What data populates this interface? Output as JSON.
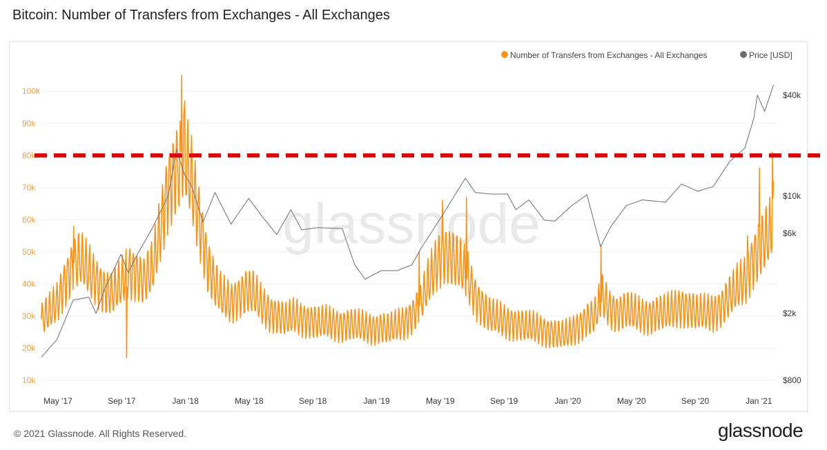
{
  "title": "Bitcoin: Number of Transfers from Exchanges - All Exchanges",
  "footer": {
    "copyright": "© 2021 Glassnode. All Rights Reserved.",
    "logo": "glassnode"
  },
  "colors": {
    "transfers": "#f7931a",
    "price": "#6e6e6e",
    "threshold": "#e00000",
    "watermark": "#e9e9e9"
  },
  "chart_data": {
    "type": "line",
    "title": "Bitcoin: Number of Transfers from Exchanges - All Exchanges",
    "watermark": "glassnode",
    "grid": "horizontal",
    "legend": {
      "position": "top-right",
      "entries": [
        "Number of Transfers from Exchanges - All Exchanges",
        "Price [USD]"
      ]
    },
    "x_ticks": [
      "May '17",
      "Sep '17",
      "Jan '18",
      "May '18",
      "Sep '18",
      "Jan '19",
      "May '19",
      "Sep '19",
      "Jan '20",
      "May '20",
      "Sep '20",
      "Jan '21"
    ],
    "y_left": {
      "ticks": [
        "10k",
        "20k",
        "30k",
        "40k",
        "50k",
        "60k",
        "70k",
        "80k",
        "90k",
        "100k"
      ],
      "range": [
        7000,
        108000
      ]
    },
    "y_right": {
      "scale": "log",
      "ticks": [
        "$800",
        "$2k",
        "$6k",
        "$10k",
        "$40k"
      ],
      "range": [
        700,
        60000
      ]
    },
    "threshold": {
      "value": 80000,
      "style": "dashed"
    },
    "series": [
      {
        "name": "Number of Transfers from Exchanges - All Exchanges",
        "axis": "left",
        "points": [
          [
            "2017-04-01",
            29000
          ],
          [
            "2017-04-15",
            31000
          ],
          [
            "2017-05-01",
            34000
          ],
          [
            "2017-05-15",
            40000
          ],
          [
            "2017-06-01",
            46000
          ],
          [
            "2017-06-15",
            48000
          ],
          [
            "2017-07-01",
            44000
          ],
          [
            "2017-07-15",
            41000
          ],
          [
            "2017-08-01",
            38000
          ],
          [
            "2017-08-15",
            37000
          ],
          [
            "2017-09-01",
            40000
          ],
          [
            "2017-09-15",
            44000
          ],
          [
            "2017-10-01",
            43000
          ],
          [
            "2017-10-15",
            41000
          ],
          [
            "2017-11-01",
            45000
          ],
          [
            "2017-11-15",
            56000
          ],
          [
            "2017-12-01",
            70000
          ],
          [
            "2017-12-15",
            75000
          ],
          [
            "2018-01-01",
            80000
          ],
          [
            "2018-01-15",
            72000
          ],
          [
            "2018-02-01",
            58000
          ],
          [
            "2018-02-15",
            46000
          ],
          [
            "2018-03-01",
            40000
          ],
          [
            "2018-03-15",
            36000
          ],
          [
            "2018-04-01",
            34000
          ],
          [
            "2018-04-15",
            36000
          ],
          [
            "2018-05-01",
            38000
          ],
          [
            "2018-05-15",
            37000
          ],
          [
            "2018-06-01",
            33000
          ],
          [
            "2018-06-15",
            31000
          ],
          [
            "2018-07-01",
            30000
          ],
          [
            "2018-07-15",
            29000
          ],
          [
            "2018-08-01",
            30000
          ],
          [
            "2018-08-15",
            29000
          ],
          [
            "2018-09-01",
            28500
          ],
          [
            "2018-09-15",
            28000
          ],
          [
            "2018-10-01",
            28000
          ],
          [
            "2018-10-15",
            27500
          ],
          [
            "2018-11-01",
            27000
          ],
          [
            "2018-11-15",
            27500
          ],
          [
            "2018-12-01",
            27000
          ],
          [
            "2018-12-15",
            26500
          ],
          [
            "2019-01-01",
            26000
          ],
          [
            "2019-01-15",
            26500
          ],
          [
            "2019-02-01",
            26000
          ],
          [
            "2019-02-15",
            27000
          ],
          [
            "2019-03-01",
            28000
          ],
          [
            "2019-03-15",
            30000
          ],
          [
            "2019-04-01",
            34000
          ],
          [
            "2019-04-15",
            40000
          ],
          [
            "2019-05-01",
            46000
          ],
          [
            "2019-05-15",
            50000
          ],
          [
            "2019-06-01",
            48000
          ],
          [
            "2019-06-15",
            46000
          ],
          [
            "2019-07-01",
            42000
          ],
          [
            "2019-07-15",
            36000
          ],
          [
            "2019-08-01",
            32000
          ],
          [
            "2019-08-15",
            30000
          ],
          [
            "2019-09-01",
            29000
          ],
          [
            "2019-09-15",
            28000
          ],
          [
            "2019-10-01",
            27500
          ],
          [
            "2019-10-15",
            27000
          ],
          [
            "2019-11-01",
            26500
          ],
          [
            "2019-11-15",
            26000
          ],
          [
            "2019-12-01",
            25000
          ],
          [
            "2019-12-15",
            24500
          ],
          [
            "2020-01-01",
            24000
          ],
          [
            "2020-01-15",
            25000
          ],
          [
            "2020-02-01",
            27000
          ],
          [
            "2020-02-15",
            29000
          ],
          [
            "2020-03-01",
            30000
          ],
          [
            "2020-03-15",
            36000
          ],
          [
            "2020-04-01",
            32000
          ],
          [
            "2020-04-15",
            31000
          ],
          [
            "2020-05-01",
            32000
          ],
          [
            "2020-05-15",
            31000
          ],
          [
            "2020-06-01",
            30000
          ],
          [
            "2020-06-15",
            30000
          ],
          [
            "2020-07-01",
            31000
          ],
          [
            "2020-07-15",
            31000
          ],
          [
            "2020-08-01",
            32000
          ],
          [
            "2020-08-15",
            33000
          ],
          [
            "2020-09-01",
            32000
          ],
          [
            "2020-09-15",
            31000
          ],
          [
            "2020-10-01",
            31000
          ],
          [
            "2020-10-15",
            31000
          ],
          [
            "2020-11-01",
            33000
          ],
          [
            "2020-11-15",
            36000
          ],
          [
            "2020-12-01",
            39000
          ],
          [
            "2020-12-15",
            41000
          ],
          [
            "2021-01-01",
            48000
          ],
          [
            "2021-01-15",
            52000
          ],
          [
            "2021-02-01",
            56000
          ],
          [
            "2021-02-08",
            60000
          ]
        ],
        "highlights": [
          [
            "2017-06-02",
            58000
          ],
          [
            "2017-09-12",
            17000
          ],
          [
            "2017-12-27",
            105000
          ],
          [
            "2018-01-02",
            97000
          ],
          [
            "2019-03-29",
            50000
          ],
          [
            "2019-05-13",
            66000
          ],
          [
            "2019-06-28",
            67000
          ],
          [
            "2020-03-13",
            52000
          ],
          [
            "2020-12-20",
            55000
          ],
          [
            "2021-01-12",
            76000
          ],
          [
            "2021-02-06",
            81000
          ]
        ]
      },
      {
        "name": "Price [USD]",
        "axis": "right",
        "points": [
          [
            "2017-04-01",
            1100
          ],
          [
            "2017-05-01",
            1400
          ],
          [
            "2017-06-01",
            2400
          ],
          [
            "2017-07-01",
            2500
          ],
          [
            "2017-07-15",
            2000
          ],
          [
            "2017-08-01",
            2800
          ],
          [
            "2017-09-01",
            4500
          ],
          [
            "2017-09-15",
            3500
          ],
          [
            "2017-10-01",
            4400
          ],
          [
            "2017-11-01",
            6500
          ],
          [
            "2017-12-01",
            10000
          ],
          [
            "2017-12-17",
            19000
          ],
          [
            "2018-01-01",
            13500
          ],
          [
            "2018-01-15",
            11500
          ],
          [
            "2018-02-06",
            7000
          ],
          [
            "2018-03-01",
            10500
          ],
          [
            "2018-04-01",
            6800
          ],
          [
            "2018-05-05",
            9700
          ],
          [
            "2018-06-01",
            7500
          ],
          [
            "2018-06-28",
            5900
          ],
          [
            "2018-07-25",
            8300
          ],
          [
            "2018-08-15",
            6300
          ],
          [
            "2018-09-15",
            6500
          ],
          [
            "2018-11-01",
            6400
          ],
          [
            "2018-11-25",
            3900
          ],
          [
            "2018-12-15",
            3200
          ],
          [
            "2019-01-15",
            3600
          ],
          [
            "2019-02-15",
            3600
          ],
          [
            "2019-03-15",
            3900
          ],
          [
            "2019-04-02",
            4900
          ],
          [
            "2019-05-15",
            7900
          ],
          [
            "2019-06-26",
            12800
          ],
          [
            "2019-07-15",
            10500
          ],
          [
            "2019-08-15",
            10300
          ],
          [
            "2019-09-15",
            10300
          ],
          [
            "2019-10-01",
            8300
          ],
          [
            "2019-10-26",
            9500
          ],
          [
            "2019-11-25",
            7200
          ],
          [
            "2019-12-15",
            7100
          ],
          [
            "2020-01-15",
            8700
          ],
          [
            "2020-02-15",
            10200
          ],
          [
            "2020-03-12",
            5000
          ],
          [
            "2020-04-01",
            6600
          ],
          [
            "2020-05-01",
            8800
          ],
          [
            "2020-06-01",
            9500
          ],
          [
            "2020-07-15",
            9200
          ],
          [
            "2020-08-15",
            11800
          ],
          [
            "2020-09-15",
            10700
          ],
          [
            "2020-10-15",
            11400
          ],
          [
            "2020-11-15",
            16000
          ],
          [
            "2020-12-15",
            19400
          ],
          [
            "2021-01-01",
            29000
          ],
          [
            "2021-01-08",
            40000
          ],
          [
            "2021-01-22",
            32000
          ],
          [
            "2021-02-08",
            46000
          ]
        ]
      }
    ]
  }
}
